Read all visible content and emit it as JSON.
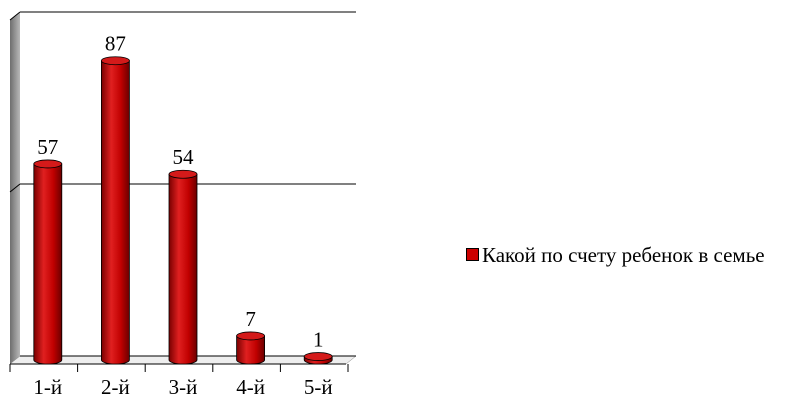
{
  "chart_data": {
    "type": "bar",
    "categories": [
      "1-й",
      "2-й",
      "3-й",
      "4-й",
      "5-й"
    ],
    "series": [
      {
        "name": "Какой по счету ребенок в семье",
        "values": [
          57,
          87,
          54,
          7,
          1
        ]
      }
    ],
    "data_labels": [
      "57",
      "87",
      "54",
      "7",
      "1"
    ],
    "ylim": [
      0,
      100
    ],
    "grid": true,
    "legend_position": "right",
    "bar_shape": "cylinder",
    "colors": {
      "bar": "#cc0000",
      "bar_dark": "#8a0000",
      "bar_light": "#e23a3a",
      "wall": "#9a9a9a",
      "gridline": "#000000"
    }
  }
}
